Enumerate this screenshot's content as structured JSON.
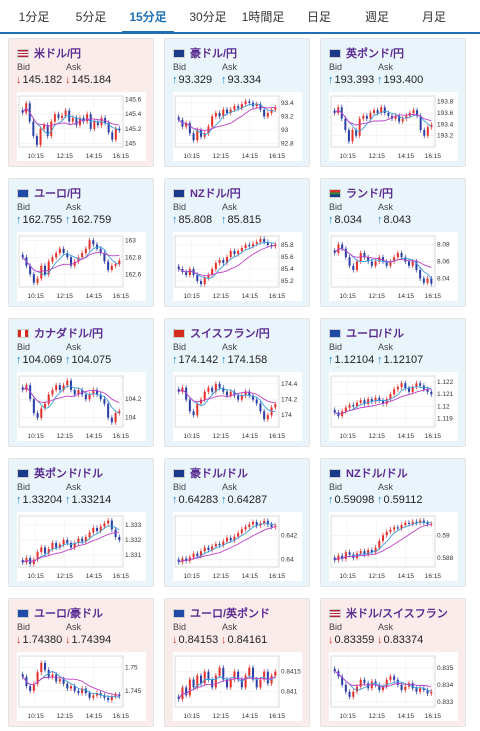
{
  "tabs": [
    {
      "label": "1分足",
      "active": false
    },
    {
      "label": "5分足",
      "active": false
    },
    {
      "label": "15分足",
      "active": true
    },
    {
      "label": "30分足",
      "active": false
    },
    {
      "label": "1時間足",
      "active": false
    },
    {
      "label": "日足",
      "active": false
    },
    {
      "label": "週足",
      "active": false
    },
    {
      "label": "月足",
      "active": false
    }
  ],
  "colors": {
    "accent": "#1e6fb5",
    "title": "#5a2c91",
    "up_arrow": "#1d8ad3",
    "down_arrow": "#d9312b",
    "candle_up": "#e4312b",
    "candle_down": "#2b3fa4",
    "ma_short": "#3aa0e0",
    "ma_long": "#c040c8",
    "card_up": "#eaf4fb",
    "card_down": "#fbecec"
  },
  "labels": {
    "bid": "Bid",
    "ask": "Ask"
  },
  "x_ticks": [
    "10:15",
    "12:15",
    "14:15",
    "16:15"
  ],
  "cards": [
    {
      "title": "米ドル/円",
      "flag": "us-jp-flag",
      "trend": "down",
      "bid": "145.182",
      "ask": "145.184",
      "yticks": [
        "145.6",
        "145.4",
        "145.2",
        "145"
      ],
      "y": [
        144.95,
        145.65
      ],
      "closes": [
        145.42,
        145.55,
        145.3,
        145.1,
        144.98,
        145.2,
        145.25,
        145.1,
        145.3,
        145.4,
        145.35,
        145.38,
        145.45,
        145.3,
        145.35,
        145.25,
        145.35,
        145.3,
        145.4,
        145.2,
        145.3,
        145.25,
        145.35,
        145.28,
        145.15,
        145.05,
        145.2,
        145.18
      ]
    },
    {
      "title": "豪ドル/円",
      "flag": "au-jp-flag",
      "trend": "up",
      "bid": "93.329",
      "ask": "93.334",
      "yticks": [
        "93.4",
        "93.2",
        "93",
        "92.8"
      ],
      "y": [
        92.75,
        93.5
      ],
      "closes": [
        93.15,
        93.05,
        93.1,
        92.95,
        92.85,
        93.0,
        92.9,
        92.95,
        93.05,
        93.2,
        93.25,
        93.2,
        93.3,
        93.25,
        93.3,
        93.35,
        93.32,
        93.38,
        93.42,
        93.4,
        93.35,
        93.38,
        93.3,
        93.2,
        93.25,
        93.3,
        93.33
      ]
    },
    {
      "title": "英ポンド/円",
      "flag": "gb-jp-flag",
      "trend": "up",
      "bid": "193.393",
      "ask": "193.400",
      "yticks": [
        "193.8",
        "193.6",
        "193.4",
        "193.2"
      ],
      "y": [
        193.0,
        193.9
      ],
      "closes": [
        193.6,
        193.7,
        193.5,
        193.3,
        193.1,
        193.3,
        193.2,
        193.5,
        193.55,
        193.5,
        193.6,
        193.65,
        193.6,
        193.7,
        193.6,
        193.55,
        193.5,
        193.55,
        193.45,
        193.5,
        193.55,
        193.6,
        193.65,
        193.55,
        193.3,
        193.2,
        193.35,
        193.39
      ]
    },
    {
      "title": "ユーロ/円",
      "flag": "eu-jp-flag",
      "trend": "up",
      "bid": "162.755",
      "ask": "162.759",
      "yticks": [
        "163",
        "162.8",
        "162.6"
      ],
      "y": [
        162.45,
        163.05
      ],
      "closes": [
        162.8,
        162.7,
        162.6,
        162.5,
        162.55,
        162.7,
        162.6,
        162.75,
        162.8,
        162.85,
        162.9,
        162.85,
        162.8,
        162.7,
        162.75,
        162.8,
        162.85,
        162.9,
        163.0,
        162.95,
        162.9,
        162.85,
        162.75,
        162.65,
        162.7,
        162.72,
        162.76
      ]
    },
    {
      "title": "NZドル/円",
      "flag": "nz-jp-flag",
      "trend": "up",
      "bid": "85.808",
      "ask": "85.815",
      "yticks": [
        "85.8",
        "85.6",
        "85.4",
        "85.2"
      ],
      "y": [
        85.1,
        85.95
      ],
      "closes": [
        85.4,
        85.35,
        85.3,
        85.4,
        85.3,
        85.2,
        85.15,
        85.25,
        85.3,
        85.4,
        85.5,
        85.55,
        85.5,
        85.6,
        85.7,
        85.65,
        85.7,
        85.75,
        85.8,
        85.78,
        85.82,
        85.85,
        85.9,
        85.85,
        85.8,
        85.78,
        85.81
      ]
    },
    {
      "title": "ランド/円",
      "flag": "za-jp-flag",
      "trend": "up",
      "bid": "8.034",
      "ask": "8.043",
      "yticks": [
        "8.08",
        "8.06",
        "8.04"
      ],
      "y": [
        8.03,
        8.09
      ],
      "closes": [
        8.07,
        8.08,
        8.075,
        8.065,
        8.055,
        8.05,
        8.06,
        8.07,
        8.065,
        8.06,
        8.055,
        8.06,
        8.065,
        8.06,
        8.055,
        8.06,
        8.065,
        8.07,
        8.065,
        8.06,
        8.055,
        8.06,
        8.05,
        8.04,
        8.035,
        8.04,
        8.034
      ]
    },
    {
      "title": "カナダドル/円",
      "flag": "ca-jp-flag",
      "trend": "up",
      "bid": "104.069",
      "ask": "104.075",
      "yticks": [
        "104.2",
        "104"
      ],
      "y": [
        103.9,
        104.45
      ],
      "closes": [
        104.3,
        104.35,
        104.2,
        104.05,
        104.0,
        104.1,
        104.15,
        104.25,
        104.3,
        104.35,
        104.3,
        104.35,
        104.4,
        104.3,
        104.25,
        104.3,
        104.25,
        104.2,
        104.25,
        104.3,
        104.25,
        104.2,
        104.15,
        104.0,
        103.95,
        104.05,
        104.07
      ]
    },
    {
      "title": "スイスフラン/円",
      "flag": "ch-jp-flag",
      "trend": "up",
      "bid": "174.142",
      "ask": "174.158",
      "yticks": [
        "174.4",
        "174.2",
        "174"
      ],
      "y": [
        173.85,
        174.5
      ],
      "closes": [
        174.3,
        174.35,
        174.2,
        174.05,
        174.0,
        174.15,
        174.2,
        174.3,
        174.35,
        174.3,
        174.4,
        174.35,
        174.3,
        174.25,
        174.3,
        174.25,
        174.2,
        174.25,
        174.3,
        174.25,
        174.2,
        174.15,
        174.05,
        173.95,
        174.0,
        174.1,
        174.14
      ]
    },
    {
      "title": "ユーロ/ドル",
      "flag": "eu-us-flag",
      "trend": "up",
      "bid": "1.12104",
      "ask": "1.12107",
      "yticks": [
        "1.122",
        "1.121",
        "1.12",
        "1.119"
      ],
      "y": [
        1.1183,
        1.1225
      ],
      "closes": [
        1.1195,
        1.1192,
        1.1196,
        1.1199,
        1.1201,
        1.12,
        1.1203,
        1.1205,
        1.1202,
        1.1206,
        1.1204,
        1.1207,
        1.1205,
        1.1202,
        1.1206,
        1.121,
        1.1214,
        1.1216,
        1.1219,
        1.1215,
        1.1212,
        1.1216,
        1.1219,
        1.1217,
        1.1214,
        1.1212,
        1.121
      ]
    },
    {
      "title": "英ポンド/ドル",
      "flag": "gb-us-flag",
      "trend": "up",
      "bid": "1.33204",
      "ask": "1.33214",
      "yticks": [
        "1.333",
        "1.332",
        "1.331"
      ],
      "y": [
        1.3302,
        1.3336
      ],
      "closes": [
        1.3305,
        1.3308,
        1.3304,
        1.3307,
        1.3312,
        1.3315,
        1.3311,
        1.3314,
        1.3318,
        1.3315,
        1.3317,
        1.332,
        1.3318,
        1.3315,
        1.3318,
        1.3321,
        1.3319,
        1.3322,
        1.3325,
        1.3328,
        1.3326,
        1.3329,
        1.3331,
        1.3333,
        1.3327,
        1.3322,
        1.332
      ]
    },
    {
      "title": "豪ドル/ドル",
      "flag": "au-us-flag",
      "trend": "up",
      "bid": "0.64283",
      "ask": "0.64287",
      "yticks": [
        "0.642",
        "0.64"
      ],
      "y": [
        0.6394,
        0.6436
      ],
      "closes": [
        0.6398,
        0.6401,
        0.6399,
        0.6402,
        0.6405,
        0.6403,
        0.6407,
        0.641,
        0.6408,
        0.6411,
        0.6413,
        0.6412,
        0.6415,
        0.6418,
        0.6416,
        0.6419,
        0.6422,
        0.6425,
        0.6427,
        0.6429,
        0.6431,
        0.6428,
        0.643,
        0.6432,
        0.6429,
        0.6427,
        0.6428
      ]
    },
    {
      "title": "NZドル/ドル",
      "flag": "nz-us-flag",
      "trend": "up",
      "bid": "0.59098",
      "ask": "0.59112",
      "yticks": [
        "0.59",
        "0.588"
      ],
      "y": [
        0.5872,
        0.5917
      ],
      "closes": [
        0.5878,
        0.5882,
        0.5879,
        0.5885,
        0.5883,
        0.588,
        0.5884,
        0.5886,
        0.5883,
        0.5887,
        0.5885,
        0.5889,
        0.5895,
        0.59,
        0.5903,
        0.5905,
        0.5907,
        0.5906,
        0.5909,
        0.5911,
        0.591,
        0.5912,
        0.5911,
        0.5913,
        0.5911,
        0.591,
        0.591
      ]
    },
    {
      "title": "ユーロ/豪ドル",
      "flag": "eu-au-flag",
      "trend": "down",
      "bid": "1.74380",
      "ask": "1.74394",
      "yticks": [
        "1.75",
        "1.745"
      ],
      "y": [
        1.7415,
        1.7525
      ],
      "closes": [
        1.748,
        1.746,
        1.745,
        1.7465,
        1.749,
        1.751,
        1.7495,
        1.748,
        1.7485,
        1.747,
        1.7475,
        1.7465,
        1.7455,
        1.746,
        1.745,
        1.7445,
        1.7455,
        1.7445,
        1.7435,
        1.744,
        1.7445,
        1.744,
        1.7435,
        1.743,
        1.7438,
        1.7442,
        1.7438
      ]
    },
    {
      "title": "ユーロ/英ポンド",
      "flag": "eu-gb-flag",
      "trend": "down",
      "bid": "0.84153",
      "ask": "0.84161",
      "yticks": [
        "0.8415",
        "0.841"
      ],
      "y": [
        0.8406,
        0.8419
      ],
      "closes": [
        0.8408,
        0.8411,
        0.8409,
        0.8413,
        0.8411,
        0.8414,
        0.8412,
        0.8415,
        0.8413,
        0.8411,
        0.8414,
        0.8416,
        0.8413,
        0.8411,
        0.8413,
        0.8415,
        0.8413,
        0.8411,
        0.8414,
        0.8416,
        0.8413,
        0.8411,
        0.8413,
        0.8415,
        0.8412,
        0.8414,
        0.8415
      ]
    },
    {
      "title": "米ドル/スイスフラン",
      "flag": "us-ch-flag",
      "trend": "down",
      "bid": "0.83359",
      "ask": "0.83374",
      "yticks": [
        "0.835",
        "0.834",
        "0.833"
      ],
      "y": [
        0.8327,
        0.8357
      ],
      "closes": [
        0.8348,
        0.8345,
        0.834,
        0.8336,
        0.8333,
        0.8336,
        0.8339,
        0.8343,
        0.8341,
        0.8338,
        0.8342,
        0.834,
        0.8337,
        0.8339,
        0.8343,
        0.8345,
        0.8343,
        0.834,
        0.8337,
        0.8339,
        0.8341,
        0.8338,
        0.8336,
        0.8338,
        0.8337,
        0.8335,
        0.8336
      ]
    }
  ]
}
